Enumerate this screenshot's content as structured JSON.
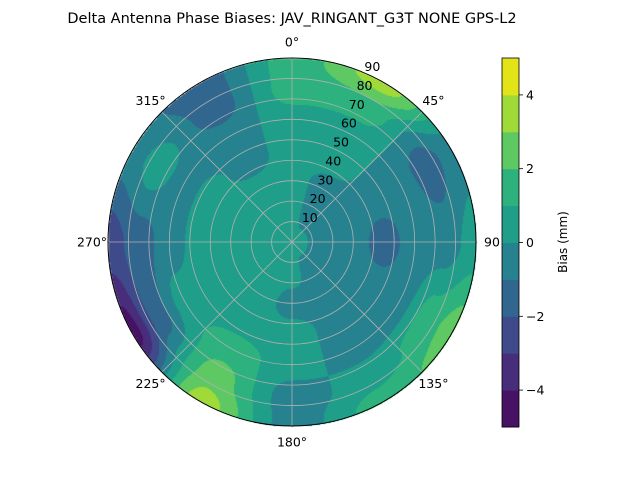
{
  "chart_data": {
    "type": "heatmap",
    "subtype": "polar-filled-contour",
    "title": "Delta Antenna Phase Biases: JAV_RINGANT_G3T NONE GPS-L2",
    "azimuth_ticks": [
      "0°",
      "45°",
      "90",
      "135°",
      "180°",
      "225°",
      "270°",
      "315°"
    ],
    "radial_ticks": [
      "10",
      "20",
      "30",
      "40",
      "50",
      "60",
      "70",
      "80",
      "90"
    ],
    "radial_range": [
      0,
      90
    ],
    "azimuth_direction": "clockwise",
    "azimuth_zero": "top",
    "grid": true,
    "colorbar": {
      "label": "Bias (mm)",
      "range": [
        -5,
        5
      ],
      "levels": [
        -5,
        -4,
        -3,
        -2,
        -1,
        0,
        1,
        2,
        3,
        4,
        5
      ],
      "tick_labels": [
        "4",
        "2",
        "0",
        "−2",
        "−4"
      ],
      "tick_values": [
        4,
        2,
        0,
        -2,
        -4
      ],
      "colormap": "viridis",
      "colors": [
        "#471164",
        "#482d7b",
        "#3e4a89",
        "#31668e",
        "#26828e",
        "#1f9e89",
        "#2db27d",
        "#5ec962",
        "#a0da39",
        "#e3e418"
      ]
    },
    "grid_azimuths_deg": [
      0,
      30,
      60,
      90,
      120,
      150,
      180,
      210,
      240,
      270,
      300,
      330
    ],
    "grid_radii": [
      0,
      15,
      30,
      45,
      60,
      75,
      90
    ],
    "values": [
      [
        0.5,
        0.5,
        0.5,
        0.5,
        0.5,
        1.5,
        1.5
      ],
      [
        0.5,
        -0.5,
        -0.5,
        0.5,
        0.5,
        1.5,
        3.5
      ],
      [
        0.5,
        -0.5,
        -0.5,
        -0.5,
        -0.5,
        -1.5,
        -0.5
      ],
      [
        0.5,
        -0.5,
        -0.5,
        -1.5,
        -0.5,
        -0.5,
        0.5
      ],
      [
        0.5,
        -0.5,
        -0.5,
        -0.5,
        -0.5,
        1.5,
        2.5
      ],
      [
        0.5,
        -0.5,
        -0.5,
        -0.5,
        -0.5,
        0.5,
        1.5
      ],
      [
        0.5,
        0.5,
        -0.5,
        0.5,
        0.5,
        -0.5,
        -0.5
      ],
      [
        0.5,
        0.5,
        0.5,
        0.5,
        1.5,
        2.5,
        3.5
      ],
      [
        0.5,
        0.5,
        0.5,
        0.5,
        0.5,
        -1.5,
        -4.5
      ],
      [
        0.5,
        0.5,
        0.5,
        0.5,
        -0.5,
        -1.5,
        -2.5
      ],
      [
        0.5,
        0.5,
        0.5,
        0.5,
        -0.5,
        0.5,
        -0.5
      ],
      [
        0.5,
        0.5,
        0.5,
        -0.5,
        -0.5,
        -1.5,
        -1.5
      ]
    ]
  }
}
